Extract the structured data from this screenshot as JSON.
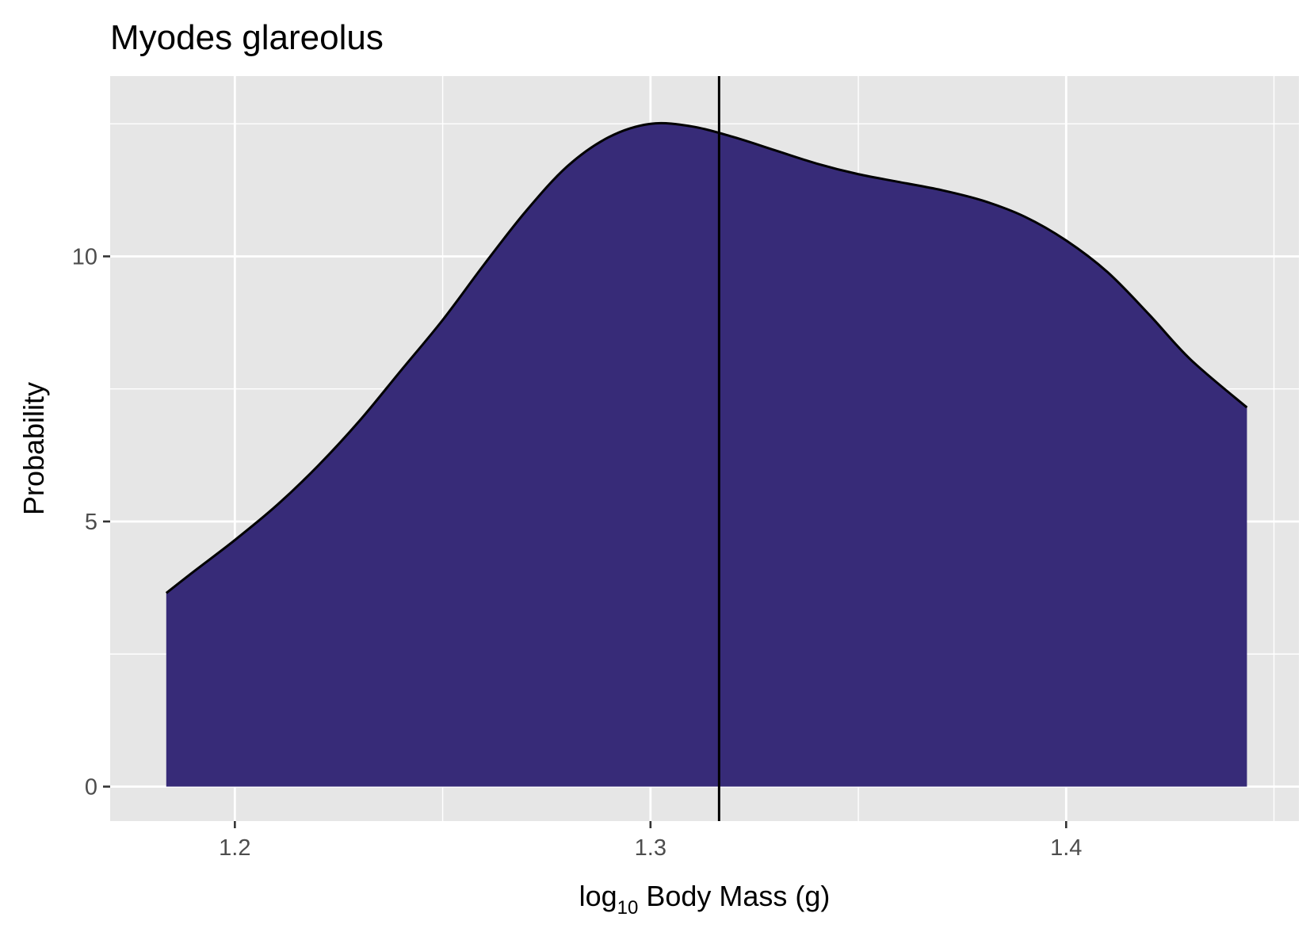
{
  "chart_data": {
    "type": "area",
    "title": "Myodes glareolus",
    "xlabel": {
      "prefix": "log",
      "subscript": "10",
      "suffix": " Body Mass (g)"
    },
    "ylabel": "Probability",
    "xlim": [
      1.17,
      1.456
    ],
    "ylim": [
      -0.65,
      13.4
    ],
    "x_ticks": [
      {
        "value": 1.2,
        "label": "1.2"
      },
      {
        "value": 1.3,
        "label": "1.3"
      },
      {
        "value": 1.4,
        "label": "1.4"
      }
    ],
    "x_minor": [
      1.25,
      1.35,
      1.45
    ],
    "y_ticks": [
      {
        "value": 0,
        "label": "0"
      },
      {
        "value": 5,
        "label": "5"
      },
      {
        "value": 10,
        "label": "10"
      }
    ],
    "y_minor": [
      2.5,
      7.5,
      12.5
    ],
    "grid": true,
    "fill_color": "#372b78",
    "line_color": "#000000",
    "panel_color": "#e6e6e6",
    "vline": 1.3165,
    "series": [
      {
        "x": [
          1.1835,
          1.19,
          1.2,
          1.21,
          1.22,
          1.23,
          1.24,
          1.25,
          1.26,
          1.27,
          1.28,
          1.29,
          1.3,
          1.31,
          1.32,
          1.33,
          1.34,
          1.35,
          1.36,
          1.37,
          1.38,
          1.39,
          1.4,
          1.41,
          1.42,
          1.43,
          1.4435
        ],
        "y": [
          3.65,
          4.05,
          4.65,
          5.3,
          6.05,
          6.9,
          7.85,
          8.8,
          9.85,
          10.85,
          11.7,
          12.25,
          12.5,
          12.45,
          12.25,
          12.0,
          11.75,
          11.55,
          11.4,
          11.25,
          11.05,
          10.75,
          10.3,
          9.7,
          8.9,
          8.05,
          7.15
        ]
      }
    ]
  }
}
